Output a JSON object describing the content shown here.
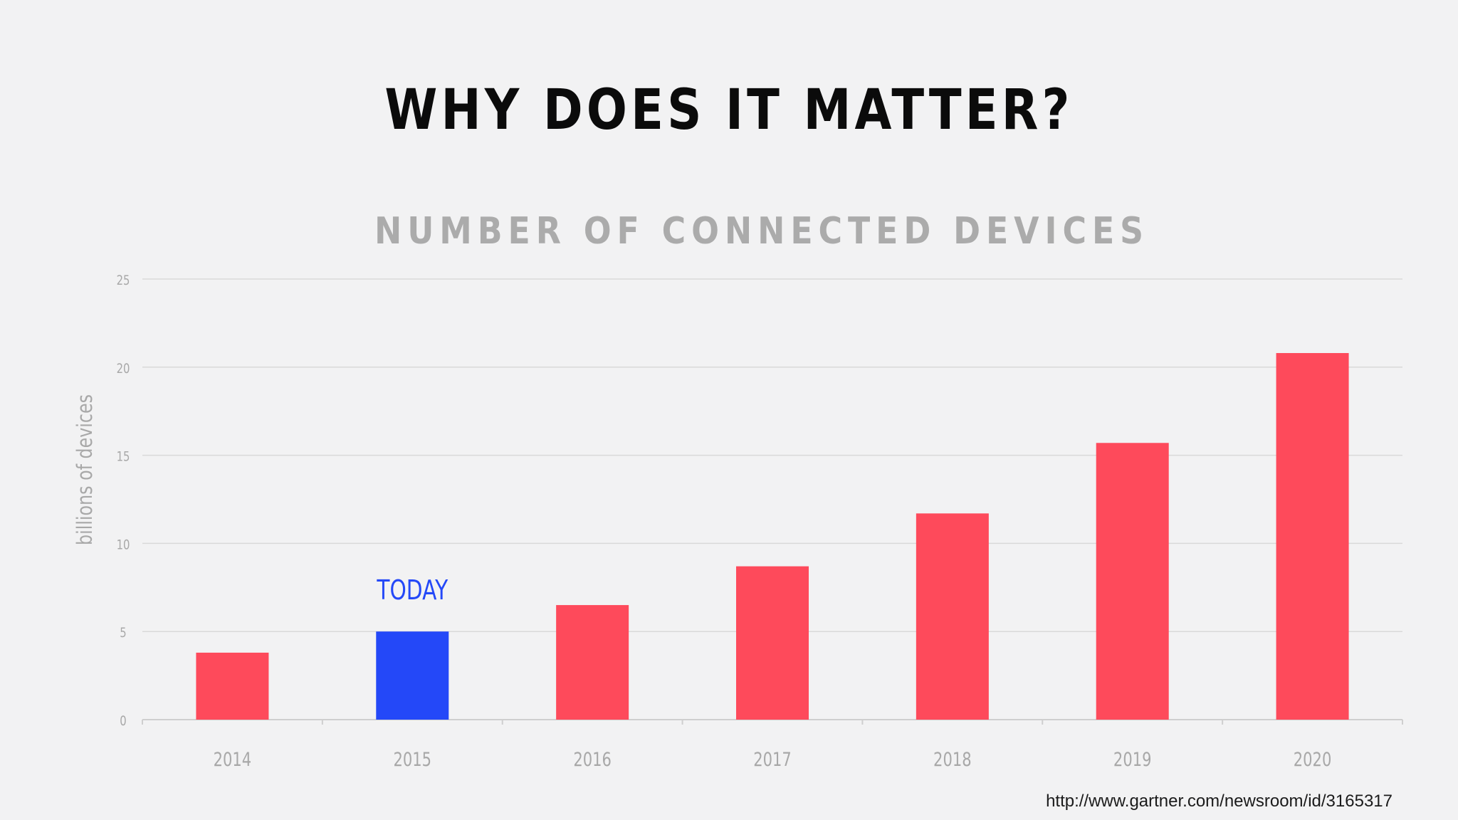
{
  "slide": {
    "title": "WHY DOES IT MATTER?",
    "source": "http://www.gartner.com/newsroom/id/3165317"
  },
  "chart_data": {
    "type": "bar",
    "title": "NUMBER OF CONNECTED DEVICES",
    "xlabel": "",
    "ylabel": "billions of devices",
    "categories": [
      "2014",
      "2015",
      "2016",
      "2017",
      "2018",
      "2019",
      "2020"
    ],
    "values": [
      3.8,
      5.0,
      6.5,
      8.7,
      11.7,
      15.7,
      20.8
    ],
    "ylim": [
      0,
      25
    ],
    "yticks": [
      0,
      5,
      10,
      15,
      20,
      25
    ],
    "grid": true,
    "highlight": {
      "category": "2015",
      "label": "TODAY"
    },
    "colors": {
      "bar": "#fe4a5b",
      "highlight": "#2448f8",
      "grid": "#d9d9d9",
      "tick_text": "#a8a8a8"
    }
  }
}
